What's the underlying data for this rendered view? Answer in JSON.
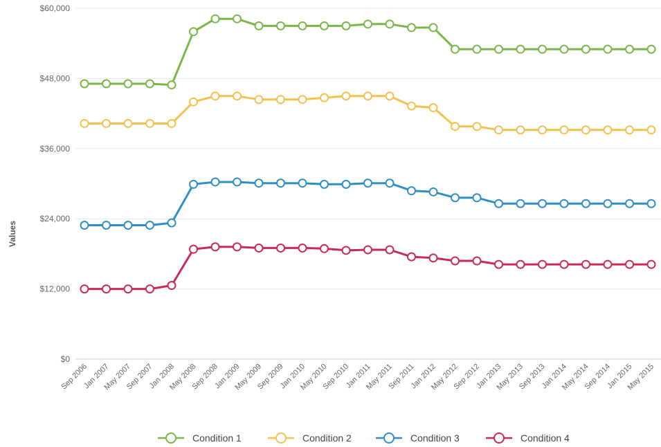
{
  "chart_data": {
    "type": "line",
    "title": "",
    "xlabel": "",
    "ylabel": "Values",
    "ylim": [
      0,
      60000
    ],
    "yticks": [
      "$0",
      "$12,000",
      "$24,000",
      "$36,000",
      "$48,000",
      "$60,000"
    ],
    "ytick_values": [
      0,
      12000,
      24000,
      36000,
      48000,
      60000
    ],
    "grid": true,
    "legend_position": "bottom",
    "categories": [
      "Sep 2006",
      "Jan 2007",
      "May 2007",
      "Sep 2007",
      "Jan 2008",
      "May 2008",
      "Sep 2008",
      "Jan 2009",
      "May 2009",
      "Sep 2009",
      "Jan 2010",
      "May 2010",
      "Sep 2010",
      "Jan 2011",
      "May 2011",
      "Sep 2011",
      "Jan 2012",
      "May 2012",
      "Sep 2012",
      "Jan 2013",
      "May 2013",
      "Sep 2013",
      "Jan 2014",
      "May 2014",
      "Sep 2014",
      "Jan 2015",
      "May 2015"
    ],
    "series": [
      {
        "name": "Condition 1",
        "color": "#7ab648",
        "values": [
          47100,
          47100,
          47100,
          47100,
          46900,
          56000,
          58200,
          58200,
          57000,
          57000,
          57000,
          57000,
          57000,
          57300,
          57300,
          56700,
          56700,
          53000,
          53000,
          53000,
          53000,
          53000,
          53000,
          53000,
          53000,
          53000,
          53000
        ]
      },
      {
        "name": "Condition 2",
        "color": "#f2c14e",
        "values": [
          40300,
          40300,
          40300,
          40300,
          40300,
          44000,
          45000,
          45000,
          44400,
          44400,
          44400,
          44700,
          45000,
          45000,
          45000,
          43300,
          43000,
          39800,
          39800,
          39200,
          39200,
          39200,
          39200,
          39200,
          39200,
          39200,
          39200
        ]
      },
      {
        "name": "Condition 3",
        "color": "#2f8fc3",
        "values": [
          22900,
          22900,
          22900,
          22900,
          23300,
          29900,
          30300,
          30300,
          30100,
          30100,
          30100,
          29900,
          29900,
          30100,
          30100,
          28800,
          28600,
          27600,
          27600,
          26600,
          26600,
          26600,
          26600,
          26600,
          26600,
          26600,
          26600
        ]
      },
      {
        "name": "Condition 4",
        "color": "#c92a55",
        "values": [
          12000,
          12000,
          12000,
          12000,
          12600,
          18800,
          19200,
          19200,
          19000,
          19000,
          19000,
          18900,
          18600,
          18700,
          18700,
          17500,
          17300,
          16800,
          16800,
          16200,
          16200,
          16200,
          16200,
          16200,
          16200,
          16200,
          16200
        ]
      }
    ]
  }
}
